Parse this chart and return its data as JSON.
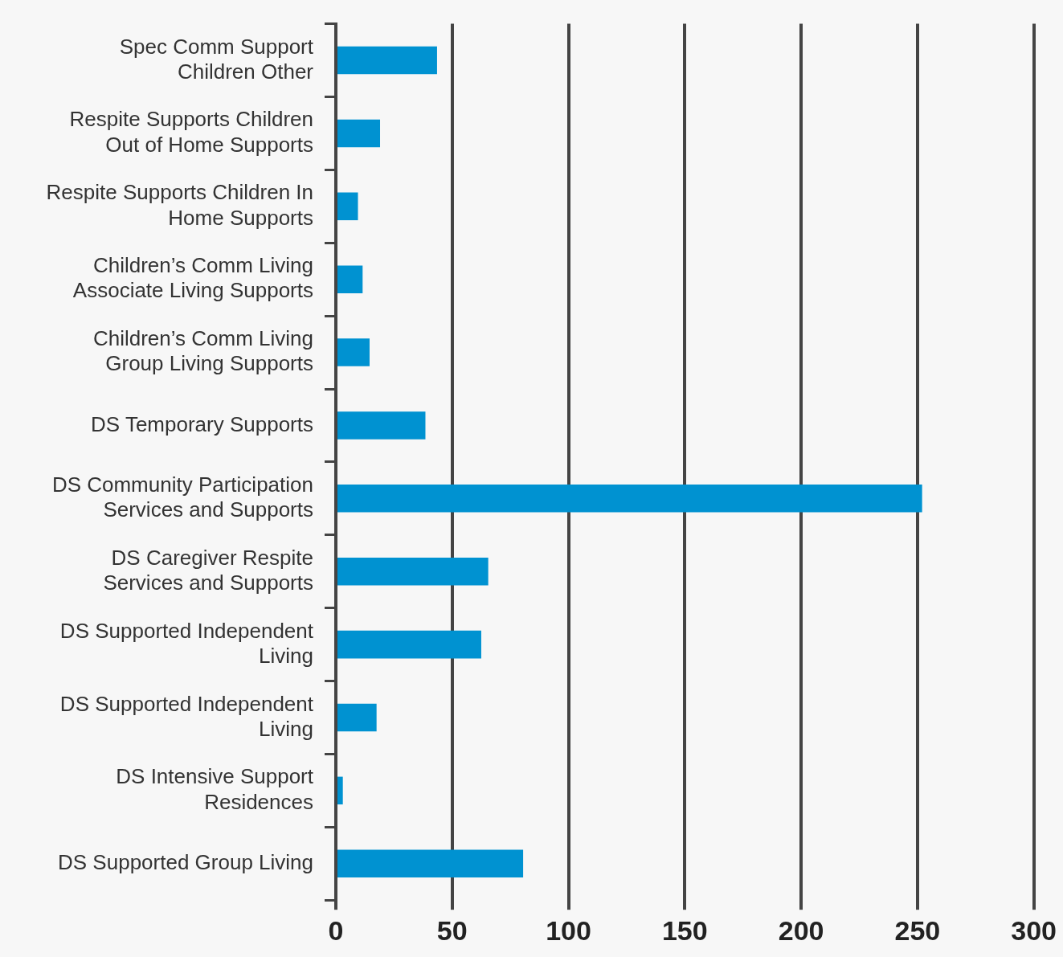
{
  "chart_data": {
    "type": "bar",
    "orientation": "horizontal",
    "categories": [
      "Spec Comm Support Children Other",
      "Respite Supports Children Out of Home Supports",
      "Respite Supports Children In Home Supports",
      "Children’s Comm Living Associate Living Supports",
      "Children’s Comm Living Group Living Supports",
      "DS Temporary Supports",
      "DS Community Participation Services and Supports",
      "DS Caregiver Respite Services and Supports",
      "DS Supported Independent Living",
      "DS Supported Independent Living",
      "DS Intensive Support Residences",
      "DS Supported Group Living"
    ],
    "values": [
      43.5,
      19,
      9.5,
      11.5,
      14.5,
      38.5,
      252,
      65.5,
      62.5,
      17.5,
      3,
      80.5
    ],
    "color": "#0092d1",
    "xlim": [
      0,
      300
    ],
    "xticks": [
      0,
      50,
      100,
      150,
      200,
      250,
      300
    ],
    "grid": "x",
    "legend": false
  }
}
